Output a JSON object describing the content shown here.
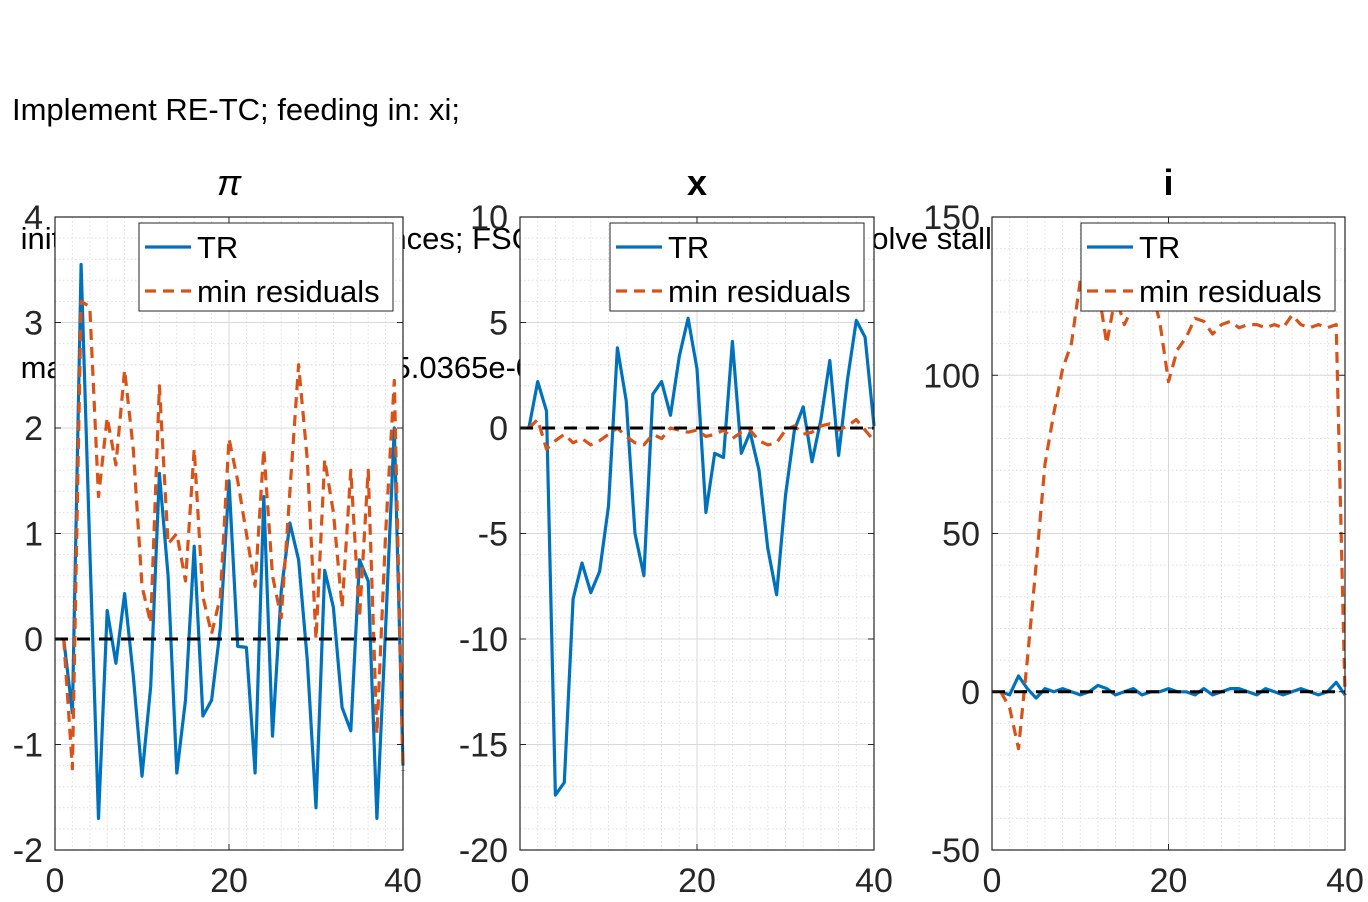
{
  "figure": {
    "title_lines": [
      "Implement RE-TC; feeding in: xi;",
      " initialized at random sequences; FSOLVE: Equation solved, fsolve stalled",
      " max(max(abs(residual))) = 5.0365e-09"
    ]
  },
  "chart_data": [
    {
      "type": "line",
      "title": "π",
      "xlim": [
        0,
        40
      ],
      "ylim": [
        -2,
        4
      ],
      "xticks": [
        0,
        20,
        40
      ],
      "yticks": [
        -2,
        -1,
        0,
        1,
        2,
        3,
        4
      ],
      "ytick_labels": [
        "-2",
        "-1",
        "0",
        "1",
        "2",
        "3",
        "4"
      ],
      "grid": true,
      "legend": "top-right",
      "x": [
        1,
        2,
        3,
        4,
        5,
        6,
        7,
        8,
        9,
        10,
        11,
        12,
        13,
        14,
        15,
        16,
        17,
        18,
        19,
        20,
        21,
        22,
        23,
        24,
        25,
        26,
        27,
        28,
        29,
        30,
        31,
        32,
        33,
        34,
        35,
        36,
        37,
        38,
        39,
        40
      ],
      "zero_line": true,
      "series": [
        {
          "name": "TR",
          "color": "#0072BD",
          "style": "solid",
          "values": [
            0,
            -0.7,
            3.55,
            0.85,
            -1.7,
            0.27,
            -0.23,
            0.43,
            -0.35,
            -1.3,
            -0.45,
            1.57,
            0.6,
            -1.27,
            -0.58,
            0.88,
            -0.73,
            -0.58,
            0.1,
            1.5,
            -0.07,
            -0.08,
            -1.27,
            1.35,
            -0.92,
            0.45,
            1.1,
            0.75,
            -0.2,
            -1.6,
            0.65,
            0.3,
            -0.65,
            -0.87,
            0.75,
            0.55,
            -1.7,
            0.1,
            2.0,
            -1.2
          ]
        },
        {
          "name": "min residuals",
          "color": "#D95319",
          "style": "dashed",
          "values": [
            0,
            -1.23,
            3.2,
            3.15,
            1.35,
            2.1,
            1.65,
            2.55,
            1.8,
            0.5,
            0.15,
            2.4,
            0.9,
            1.0,
            0.55,
            1.8,
            0.4,
            0.05,
            0.4,
            1.9,
            1.5,
            1.0,
            0.5,
            1.8,
            0.6,
            0.2,
            1.4,
            2.6,
            1.7,
            0.0,
            1.7,
            1.2,
            0.3,
            1.6,
            0.2,
            1.6,
            -0.9,
            1.0,
            2.45,
            -1.25
          ]
        }
      ]
    },
    {
      "type": "line",
      "title": "x",
      "xlim": [
        0,
        40
      ],
      "ylim": [
        -20,
        10
      ],
      "xticks": [
        0,
        20,
        40
      ],
      "yticks": [
        -20,
        -15,
        -10,
        -5,
        0,
        5,
        10
      ],
      "ytick_labels": [
        "-20",
        "-15",
        "-10",
        "-5",
        "0",
        "5",
        "10"
      ],
      "grid": true,
      "legend": "top-right",
      "x": [
        1,
        2,
        3,
        4,
        5,
        6,
        7,
        8,
        9,
        10,
        11,
        12,
        13,
        14,
        15,
        16,
        17,
        18,
        19,
        20,
        21,
        22,
        23,
        24,
        25,
        26,
        27,
        28,
        29,
        30,
        31,
        32,
        33,
        34,
        35,
        36,
        37,
        38,
        39,
        40
      ],
      "zero_line": true,
      "series": [
        {
          "name": "TR",
          "color": "#0072BD",
          "style": "solid",
          "values": [
            0,
            2.2,
            0.8,
            -17.4,
            -16.8,
            -8.1,
            -6.4,
            -7.8,
            -6.8,
            -3.7,
            3.8,
            1.3,
            -5.0,
            -7.0,
            1.6,
            2.2,
            0.6,
            3.4,
            5.2,
            2.8,
            -4.0,
            -1.2,
            -1.4,
            4.1,
            -1.2,
            -0.2,
            -2.0,
            -5.7,
            -7.9,
            -3.2,
            -0.1,
            1.0,
            -1.6,
            0.4,
            3.2,
            -1.3,
            2.3,
            5.1,
            4.3,
            0.1
          ]
        },
        {
          "name": "min residuals",
          "color": "#D95319",
          "style": "dashed",
          "values": [
            0,
            0.4,
            -1.0,
            -0.6,
            -0.3,
            -0.7,
            -0.5,
            -0.8,
            -0.6,
            -0.3,
            0,
            -0.4,
            -0.7,
            -0.8,
            -0.3,
            -0.5,
            0,
            -0.1,
            -0.2,
            -0.1,
            -0.4,
            -0.3,
            -0.1,
            -0.5,
            -0.2,
            -0.1,
            -0.6,
            -0.8,
            -0.7,
            -0.1,
            0.1,
            -0.3,
            -0.2,
            0.1,
            0.2,
            -0.1,
            0.1,
            0.4,
            -0.1,
            -0.6
          ]
        }
      ]
    },
    {
      "type": "line",
      "title": "i",
      "xlim": [
        0,
        40
      ],
      "ylim": [
        -50,
        150
      ],
      "xticks": [
        0,
        20,
        40
      ],
      "yticks": [
        -50,
        0,
        50,
        100,
        150
      ],
      "ytick_labels": [
        "-50",
        "0",
        "50",
        "100",
        "150"
      ],
      "grid": true,
      "legend": "top-right",
      "x": [
        1,
        2,
        3,
        4,
        5,
        6,
        7,
        8,
        9,
        10,
        11,
        12,
        13,
        14,
        15,
        16,
        17,
        18,
        19,
        20,
        21,
        22,
        23,
        24,
        25,
        26,
        27,
        28,
        29,
        30,
        31,
        32,
        33,
        34,
        35,
        36,
        37,
        38,
        39,
        40
      ],
      "zero_line": true,
      "series": [
        {
          "name": "TR",
          "color": "#0072BD",
          "style": "solid",
          "values": [
            0,
            -1,
            5,
            1,
            -2,
            1,
            0,
            1,
            0,
            -1,
            0,
            2,
            1,
            -1,
            0,
            1,
            -1,
            0,
            0,
            1,
            0,
            0,
            -1,
            1,
            -1,
            0,
            1,
            1,
            0,
            -1,
            1,
            0,
            -1,
            0,
            1,
            0,
            -1,
            0,
            3,
            -1
          ]
        },
        {
          "name": "min residuals",
          "color": "#D95319",
          "style": "dashed",
          "values": [
            0,
            -5,
            -18,
            10,
            40,
            72,
            88,
            102,
            110,
            130,
            137,
            128,
            110,
            125,
            116,
            122,
            124,
            128,
            117,
            98,
            108,
            112,
            118,
            117,
            113,
            116,
            117,
            115,
            116,
            116,
            115,
            116,
            115,
            119,
            116,
            115,
            116,
            115,
            116,
            -1
          ]
        }
      ]
    }
  ]
}
